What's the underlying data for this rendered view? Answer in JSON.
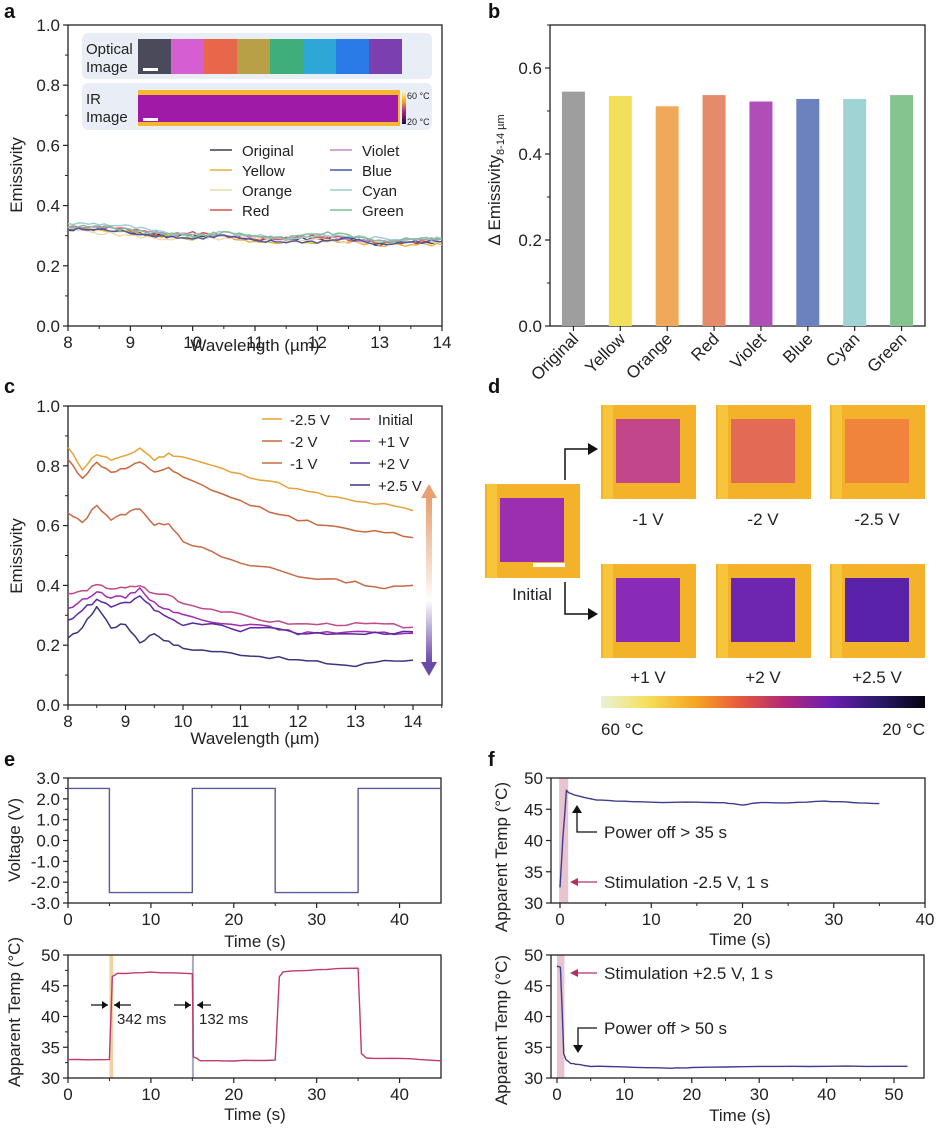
{
  "chart_data": [
    {
      "panel": "a",
      "type": "line",
      "xlabel": "Wavelength (µm)",
      "ylabel": "Emissivity",
      "xlim": [
        8,
        14
      ],
      "ylim": [
        0.0,
        1.0
      ],
      "xticks": [
        "8",
        "9",
        "10",
        "11",
        "12",
        "13",
        "14"
      ],
      "yticks": [
        "0.0",
        "0.2",
        "0.4",
        "0.6",
        "0.8",
        "1.0"
      ],
      "legend_position": "center-right",
      "inset": {
        "optical_label": [
          "Optical",
          "Image"
        ],
        "optical_swatches": [
          "#4a4a5a",
          "#d45fd0",
          "#e8664a",
          "#b8a046",
          "#3fae7a",
          "#2ea6d6",
          "#2a7be8",
          "#7c3fb0"
        ],
        "ir_label": [
          "IR",
          "Image"
        ],
        "colorbar_top": "60 °C",
        "colorbar_bottom": "20 °C"
      },
      "x": [
        8.0,
        8.5,
        9.0,
        9.5,
        10.0,
        10.5,
        11.0,
        11.5,
        12.0,
        12.5,
        13.0,
        13.5,
        14.0
      ],
      "series": [
        {
          "name": "Original",
          "color": "#3c3c50",
          "values": [
            0.32,
            0.32,
            0.31,
            0.3,
            0.3,
            0.3,
            0.29,
            0.29,
            0.29,
            0.29,
            0.27,
            0.28,
            0.28
          ]
        },
        {
          "name": "Yellow",
          "color": "#e3b33a",
          "values": [
            0.33,
            0.32,
            0.31,
            0.3,
            0.29,
            0.3,
            0.28,
            0.28,
            0.28,
            0.28,
            0.27,
            0.27,
            0.27
          ]
        },
        {
          "name": "Orange",
          "color": "#f2d9a8",
          "values": [
            0.32,
            0.31,
            0.3,
            0.29,
            0.29,
            0.29,
            0.29,
            0.28,
            0.29,
            0.28,
            0.28,
            0.28,
            0.28
          ]
        },
        {
          "name": "Red",
          "color": "#d9534f",
          "values": [
            0.33,
            0.33,
            0.32,
            0.3,
            0.31,
            0.3,
            0.29,
            0.29,
            0.3,
            0.29,
            0.28,
            0.28,
            0.29
          ]
        },
        {
          "name": "Violet",
          "color": "#c58ac4",
          "values": [
            0.33,
            0.33,
            0.32,
            0.31,
            0.3,
            0.3,
            0.3,
            0.29,
            0.3,
            0.29,
            0.28,
            0.29,
            0.29
          ]
        },
        {
          "name": "Blue",
          "color": "#4a55a8",
          "values": [
            0.32,
            0.32,
            0.31,
            0.3,
            0.29,
            0.3,
            0.28,
            0.28,
            0.28,
            0.29,
            0.27,
            0.28,
            0.28
          ]
        },
        {
          "name": "Cyan",
          "color": "#9ccbd6",
          "values": [
            0.34,
            0.34,
            0.33,
            0.31,
            0.3,
            0.31,
            0.3,
            0.29,
            0.3,
            0.3,
            0.29,
            0.29,
            0.29
          ]
        },
        {
          "name": "Green",
          "color": "#7fbf92",
          "values": [
            0.33,
            0.33,
            0.32,
            0.31,
            0.3,
            0.31,
            0.3,
            0.29,
            0.31,
            0.3,
            0.28,
            0.29,
            0.29
          ]
        }
      ]
    },
    {
      "panel": "b",
      "type": "bar",
      "ylabel": "Δ Emissivity",
      "ylabel_subscript": "8-14 µm",
      "ylim": [
        0.0,
        0.7
      ],
      "yticks": [
        "0.0",
        "0.2",
        "0.4",
        "0.6"
      ],
      "categories": [
        "Original",
        "Yellow",
        "Orange",
        "Red",
        "Violet",
        "Blue",
        "Cyan",
        "Green"
      ],
      "values": [
        0.545,
        0.535,
        0.511,
        0.537,
        0.522,
        0.528,
        0.528,
        0.537
      ],
      "colors": [
        "#9e9e9e",
        "#f2e05a",
        "#f0a95a",
        "#e58a6a",
        "#b04eb8",
        "#6c82bf",
        "#9fd3d4",
        "#86c48f"
      ]
    },
    {
      "panel": "c",
      "type": "line",
      "xlabel": "Wavelength (µm)",
      "ylabel": "Emissivity",
      "xlim": [
        8,
        14.5
      ],
      "ylim": [
        0.0,
        1.0
      ],
      "xticks": [
        "8",
        "9",
        "10",
        "11",
        "12",
        "13",
        "14"
      ],
      "yticks": [
        "0.0",
        "0.2",
        "0.4",
        "0.6",
        "0.8",
        "1.0"
      ],
      "legend_position": "top-right",
      "arrow_colors": {
        "up": "#e8a070",
        "down": "#6a4aa8"
      },
      "x": [
        8.0,
        8.25,
        8.5,
        8.75,
        9.0,
        9.25,
        9.5,
        9.75,
        10.0,
        10.5,
        11.0,
        11.5,
        12.0,
        12.5,
        13.0,
        13.5,
        14.0
      ],
      "series": [
        {
          "name": "-2.5 V",
          "color": "#e8a23a",
          "values": [
            0.86,
            0.79,
            0.84,
            0.82,
            0.83,
            0.86,
            0.82,
            0.84,
            0.83,
            0.8,
            0.77,
            0.75,
            0.72,
            0.7,
            0.68,
            0.67,
            0.65
          ]
        },
        {
          "name": "-2 V",
          "color": "#c9683f",
          "values": [
            0.82,
            0.76,
            0.81,
            0.78,
            0.79,
            0.81,
            0.78,
            0.79,
            0.76,
            0.72,
            0.68,
            0.65,
            0.62,
            0.6,
            0.58,
            0.58,
            0.56
          ]
        },
        {
          "name": "-1 V",
          "color": "#c96a45",
          "values": [
            0.64,
            0.61,
            0.67,
            0.62,
            0.64,
            0.66,
            0.6,
            0.61,
            0.55,
            0.51,
            0.47,
            0.46,
            0.43,
            0.42,
            0.41,
            0.39,
            0.4
          ]
        },
        {
          "name": "Initial",
          "color": "#c04a8a",
          "values": [
            0.37,
            0.38,
            0.4,
            0.39,
            0.39,
            0.4,
            0.37,
            0.37,
            0.34,
            0.32,
            0.3,
            0.28,
            0.27,
            0.27,
            0.27,
            0.27,
            0.26
          ]
        },
        {
          "name": "+1 V",
          "color": "#a02cb0",
          "values": [
            0.32,
            0.35,
            0.38,
            0.36,
            0.36,
            0.39,
            0.34,
            0.32,
            0.3,
            0.28,
            0.27,
            0.26,
            0.24,
            0.24,
            0.25,
            0.24,
            0.24
          ]
        },
        {
          "name": "+2 V",
          "color": "#5a2aa0",
          "values": [
            0.28,
            0.32,
            0.35,
            0.33,
            0.34,
            0.36,
            0.32,
            0.29,
            0.27,
            0.27,
            0.25,
            0.26,
            0.24,
            0.24,
            0.24,
            0.24,
            0.245
          ]
        },
        {
          "name": "+2.5 V",
          "color": "#3b3580",
          "values": [
            0.22,
            0.26,
            0.33,
            0.26,
            0.27,
            0.21,
            0.24,
            0.21,
            0.19,
            0.18,
            0.17,
            0.16,
            0.15,
            0.14,
            0.13,
            0.15,
            0.15
          ]
        }
      ]
    },
    {
      "panel": "d",
      "type": "heatmap",
      "initial_label": "Initial",
      "tiles_top": [
        "-1 V",
        "-2 V",
        "-2.5 V"
      ],
      "tiles_bottom": [
        "+1 V",
        "+2 V",
        "+2.5 V"
      ],
      "colorbar_left": "60 °C",
      "colorbar_right": "20 °C",
      "square_colors": {
        "initial": "#9c2fb0",
        "-1 V": "#c2478a",
        "-2 V": "#e36a55",
        "-2.5 V": "#f0843c",
        "+1 V": "#8a2ab8",
        "+2 V": "#6e25b0",
        "+2.5 V": "#5a22a8"
      },
      "border_color": "#f4b22a"
    },
    {
      "panel": "e-top",
      "type": "line",
      "xlabel": "Time (s)",
      "ylabel": "Voltage (V)",
      "xlim": [
        0,
        45
      ],
      "ylim": [
        -3.0,
        3.0
      ],
      "xticks": [
        "0",
        "10",
        "20",
        "30",
        "40"
      ],
      "yticks": [
        "3.0",
        "2.0",
        "1.0",
        "0.0",
        "-1.0",
        "-2.0",
        "-3.0"
      ],
      "series": [
        {
          "name": "Voltage",
          "color": "#5a5a9a",
          "x": [
            0,
            5,
            5,
            15,
            15,
            25,
            25,
            35,
            35,
            45
          ],
          "values": [
            2.5,
            2.5,
            -2.5,
            -2.5,
            2.5,
            2.5,
            -2.5,
            -2.5,
            2.5,
            2.5
          ]
        }
      ]
    },
    {
      "panel": "e-bottom",
      "type": "line",
      "xlabel": "Time (s)",
      "ylabel": "Apparent Temp (°C)",
      "xlim": [
        0,
        45
      ],
      "ylim": [
        30,
        50
      ],
      "xticks": [
        "0",
        "10",
        "20",
        "30",
        "40"
      ],
      "yticks": [
        "50",
        "45",
        "40",
        "35",
        "30"
      ],
      "annotations": [
        "342 ms",
        "132 ms"
      ],
      "highlight_colors": [
        "#f2c48a",
        "#a8a8c8"
      ],
      "series": [
        {
          "name": "Apparent Temp",
          "color": "#c03a6a",
          "x": [
            0,
            5,
            5.34,
            6,
            10,
            15,
            15.13,
            16,
            20,
            25,
            25.5,
            26,
            30,
            35,
            35.4,
            36,
            40,
            45
          ],
          "values": [
            33,
            33,
            46.5,
            47,
            47.2,
            47,
            33.5,
            32.8,
            32.8,
            32.9,
            46.5,
            47.3,
            47.6,
            47.9,
            34,
            33.2,
            33.2,
            32.8
          ]
        }
      ]
    },
    {
      "panel": "f-top",
      "type": "line",
      "xlabel": "Time (s)",
      "ylabel": "Apparent Temp (°C)",
      "xlim": [
        -1,
        40
      ],
      "ylim": [
        30,
        50
      ],
      "xticks": [
        "0",
        "10",
        "20",
        "30",
        "40"
      ],
      "yticks": [
        "50",
        "45",
        "40",
        "35",
        "30"
      ],
      "annotations": [
        "Power off > 35 s",
        "Stimulation -2.5 V, 1 s"
      ],
      "series": [
        {
          "name": "Apparent Temp",
          "color": "#3d3d8f",
          "x": [
            0,
            0.3,
            0.7,
            1,
            2,
            4,
            6,
            10,
            15,
            18,
            20,
            22,
            25,
            29,
            32,
            35
          ],
          "values": [
            32.5,
            40,
            48,
            47.6,
            47.1,
            46.5,
            46.3,
            46.1,
            46.1,
            46.0,
            45.7,
            46.1,
            46.0,
            46.3,
            46.1,
            45.9
          ]
        }
      ]
    },
    {
      "panel": "f-bottom",
      "type": "line",
      "xlabel": "Time (s)",
      "ylabel": "Apparent Temp (°C)",
      "xlim": [
        -1,
        55
      ],
      "ylim": [
        30,
        50
      ],
      "xticks": [
        "0",
        "10",
        "20",
        "30",
        "40",
        "50"
      ],
      "yticks": [
        "50",
        "45",
        "40",
        "35",
        "30"
      ],
      "annotations": [
        "Stimulation +2.5 V, 1 s",
        "Power off > 50 s"
      ],
      "series": [
        {
          "name": "Apparent Temp",
          "color": "#3d3d8f",
          "x": [
            0,
            0.5,
            0.8,
            1,
            1.3,
            2,
            3,
            5,
            10,
            17,
            20,
            30,
            40,
            52
          ],
          "values": [
            48.2,
            48,
            40,
            34,
            33,
            32.4,
            32.2,
            31.9,
            31.8,
            31.6,
            31.7,
            31.9,
            31.9,
            31.9
          ]
        }
      ]
    }
  ],
  "panel_labels": [
    "a",
    "b",
    "c",
    "d",
    "e",
    "f"
  ],
  "d_colorbar_stops": [
    "#e9f2d9",
    "#f6e05a",
    "#f5a623",
    "#e8583c",
    "#b0287a",
    "#6a1fb0",
    "#2a1a6a",
    "#05030f"
  ]
}
